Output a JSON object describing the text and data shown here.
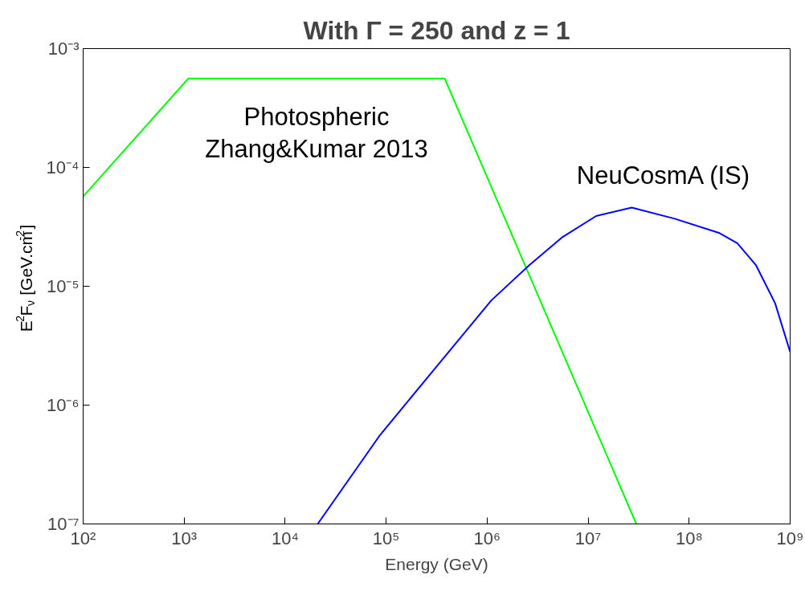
{
  "chart_data": {
    "type": "line",
    "title": "With Γ = 250 and z = 1",
    "xlabel": "Energy (GeV)",
    "ylabel": "E$^{2}$F$_{ν}$ [GeV.cm$^{-2}$]",
    "log": "xy",
    "grid": false,
    "marker": "none",
    "line_style": "solid",
    "xlim": [
      100,
      1000000000
    ],
    "ylim": [
      1e-07,
      0.001
    ],
    "xticks": [
      {
        "value": 100,
        "label": "10²"
      },
      {
        "value": 1000,
        "label": "10³"
      },
      {
        "value": 10000,
        "label": "10⁴"
      },
      {
        "value": 100000,
        "label": "10⁵"
      },
      {
        "value": 1000000,
        "label": "10⁶"
      },
      {
        "value": 10000000,
        "label": "10⁷"
      },
      {
        "value": 100000000,
        "label": "10⁸"
      },
      {
        "value": 1000000000,
        "label": "10⁹"
      }
    ],
    "yticks": [
      {
        "value": 1e-07,
        "label": "10⁻⁷"
      },
      {
        "value": 1e-06,
        "label": "10⁻⁶"
      },
      {
        "value": 1e-05,
        "label": "10⁻⁵"
      },
      {
        "value": 0.0001,
        "label": "10⁻⁴"
      },
      {
        "value": 0.001,
        "label": "10⁻³"
      }
    ],
    "series": [
      {
        "name": "Photospheric\nZhang&Kumar 2013",
        "color": "#00ff00",
        "x": [
          100,
          1100,
          380000,
          30000000
        ],
        "values": [
          5.7e-05,
          0.00056,
          0.00056,
          1e-07
        ]
      },
      {
        "name": "NeuCosmA (IS)",
        "color": "#0000ff",
        "x": [
          21000,
          87000,
          300000,
          1100000,
          2600000,
          5600000,
          12000000,
          27000000,
          72000000,
          200000000,
          300000000,
          460000000,
          710000000,
          1000000000
        ],
        "values": [
          1e-07,
          5.6e-07,
          2e-06,
          7.6e-06,
          1.5e-05,
          2.6e-05,
          3.9e-05,
          4.6e-05,
          3.7e-05,
          2.8e-05,
          2.3e-05,
          1.5e-05,
          7.2e-06,
          2.8e-06
        ]
      }
    ]
  }
}
